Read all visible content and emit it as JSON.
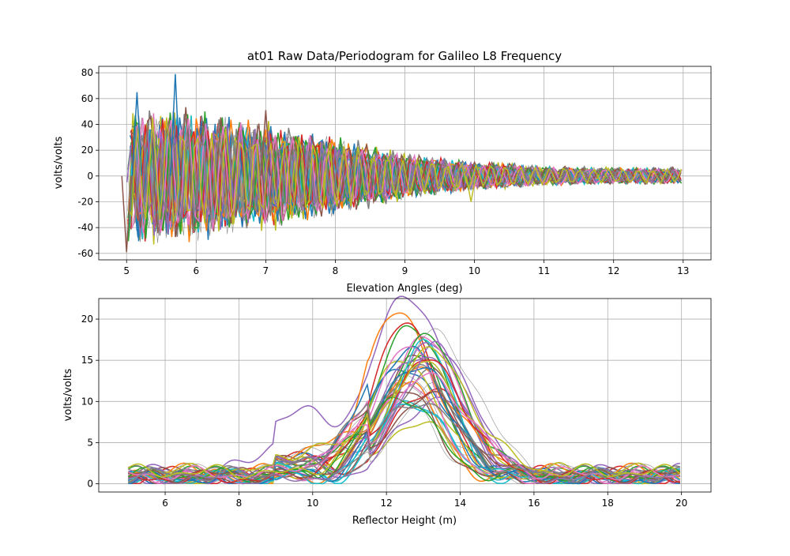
{
  "chart_data": [
    {
      "type": "line",
      "title": "at01 Raw Data/Periodogram for Galileo L8 Frequency",
      "xlabel": "Elevation Angles (deg)",
      "ylabel": "volts/volts",
      "xlim": [
        4.6,
        13.4
      ],
      "ylim": [
        -65,
        85
      ],
      "xticks": [
        5,
        6,
        7,
        8,
        9,
        10,
        11,
        12,
        13
      ],
      "yticks": [
        -60,
        -40,
        -20,
        0,
        20,
        40,
        60,
        80
      ],
      "grid": true,
      "x_range": [
        5,
        13
      ],
      "series_count": 40,
      "colors": [
        "#1f77b4",
        "#ff7f0e",
        "#2ca02c",
        "#d62728",
        "#9467bd",
        "#8c564b",
        "#e377c2",
        "#7f7f7f",
        "#bcbd22",
        "#17becf"
      ],
      "series": [
        {
          "amplitude_env": [
            {
              "x": 5,
              "y": 40
            },
            {
              "x": 6,
              "y": 40
            },
            {
              "x": 7,
              "y": 32
            },
            {
              "x": 8,
              "y": 24
            },
            {
              "x": 9,
              "y": 14
            },
            {
              "x": 10,
              "y": 9
            },
            {
              "x": 11,
              "y": 6
            },
            {
              "x": 12,
              "y": 5
            },
            {
              "x": 13,
              "y": 5
            }
          ]
        }
      ],
      "notable_values": [
        {
          "x": 5.7,
          "y": 79
        },
        {
          "x": 5.15,
          "y": 65
        },
        {
          "x": 5.0,
          "y": -59
        },
        {
          "x": 7.0,
          "y": 51
        },
        {
          "x": 9.95,
          "y": -20
        }
      ]
    },
    {
      "type": "line",
      "title": "",
      "xlabel": "Reflector Height (m)",
      "ylabel": "volts/volts",
      "xlim": [
        4.2,
        20.8
      ],
      "ylim": [
        -1,
        22.5
      ],
      "xticks": [
        6,
        8,
        10,
        12,
        14,
        16,
        18,
        20
      ],
      "yticks": [
        0,
        5,
        10,
        15,
        20
      ],
      "grid": true,
      "x_range": [
        5,
        20
      ],
      "series_count": 40,
      "colors": [
        "#1f77b4",
        "#ff7f0e",
        "#2ca02c",
        "#d62728",
        "#9467bd",
        "#8c564b",
        "#e377c2",
        "#7f7f7f",
        "#bcbd22",
        "#17becf"
      ],
      "peaks": [
        {
          "x": 12.6,
          "y": 21.3
        },
        {
          "x": 12.35,
          "y": 20.4
        },
        {
          "x": 12.7,
          "y": 18.6
        },
        {
          "x": 12.55,
          "y": 18.3
        },
        {
          "x": 13.3,
          "y": 16.6
        },
        {
          "x": 12.9,
          "y": 15.0
        },
        {
          "x": 12.6,
          "y": 12.0
        },
        {
          "x": 12.6,
          "y": 9.0
        },
        {
          "x": 12.8,
          "y": 6.5
        }
      ],
      "secondary_bump": {
        "x": 9.7,
        "y": 7.3
      },
      "baseline_range": [
        0,
        3
      ]
    }
  ]
}
